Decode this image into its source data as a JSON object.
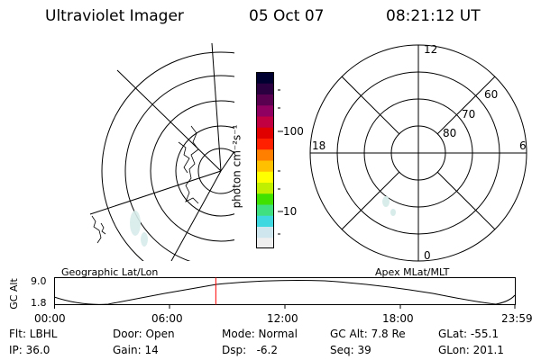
{
  "header": {
    "title": "Ultraviolet Imager",
    "date": "05 Oct 07",
    "time": "08:21:12 UT"
  },
  "colorbar": {
    "label": "photon cm⁻²s⁻¹",
    "tick_100": "100",
    "tick_10": "10",
    "colors": [
      "#efefef",
      "#cfe6ef",
      "#40d8e0",
      "#40e080",
      "#40e000",
      "#c0f000",
      "#ffff00",
      "#ffc000",
      "#ff8000",
      "#ff2000",
      "#e00000",
      "#c00040",
      "#900060",
      "#5a0050",
      "#2b0040",
      "#000030"
    ]
  },
  "polar": {
    "labels": {
      "top": "12",
      "bottom": "0",
      "left": "18",
      "right": "6"
    },
    "lat_labels": [
      "60",
      "70",
      "80"
    ]
  },
  "timeline": {
    "left_label": "Geographic Lat/Lon",
    "right_label": "Apex MLat/MLT",
    "ylabel": "GC Alt",
    "y_top": "9.0",
    "y_bottom": "1.8",
    "xticks": [
      "00:00",
      "06:00",
      "12:00",
      "18:00",
      "23:59"
    ],
    "current_time_fraction": 0.35,
    "current_marker_color": "#ff0000"
  },
  "status": {
    "flt": "Flt: LBHL",
    "ip": "IP: 36.0",
    "door": "Door: Open",
    "gain": "Gain: 14",
    "mode": "Mode: Normal",
    "dsp": "Dsp:   -6.2",
    "gc_alt": "GC Alt: 7.8 Re",
    "seq": "Seq: 39",
    "glat": "GLat: -55.1",
    "glon": "GLon: 201.1"
  }
}
